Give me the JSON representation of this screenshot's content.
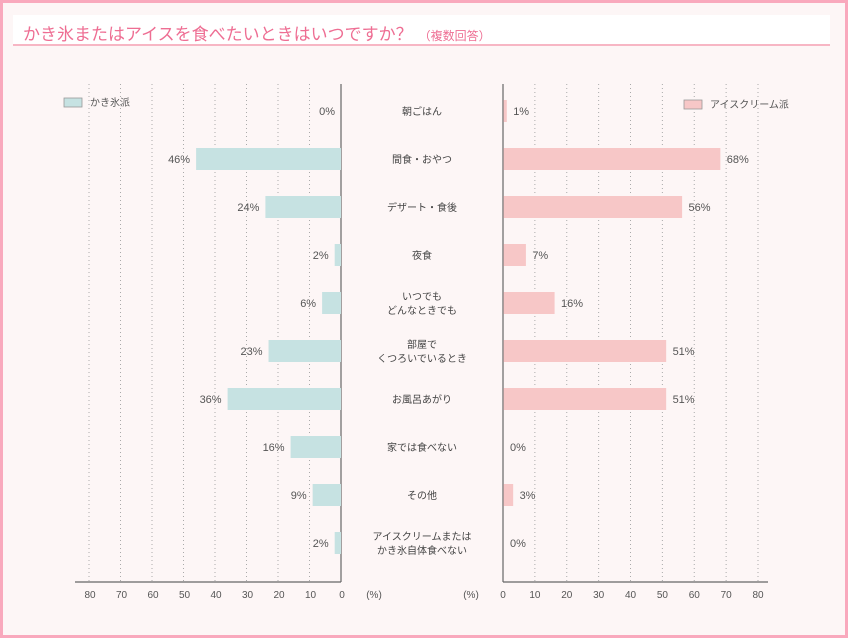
{
  "title": {
    "main": "かき氷またはアイスを食べたいときはいつですか？",
    "sub": "（複数回答）"
  },
  "colors": {
    "kakigori": "#c6e2e2",
    "icecream": "#f7c7c7",
    "title": "#ee6e93",
    "border": "#f9a9bd"
  },
  "chart_data": {
    "type": "bar",
    "orientation": "horizontal-butterfly",
    "title": "かき氷またはアイスを食べたいときはいつですか？（複数回答）",
    "categories": [
      [
        "朝ごはん"
      ],
      [
        "間食・おやつ"
      ],
      [
        "デザート・食後"
      ],
      [
        "夜食"
      ],
      [
        "いつでも",
        "どんなときでも"
      ],
      [
        "部屋で",
        "くつろいでいるとき"
      ],
      [
        "お風呂あがり"
      ],
      [
        "家では食べない"
      ],
      [
        "その他"
      ],
      [
        "アイスクリームまたは",
        "かき氷自体食べない"
      ]
    ],
    "series": [
      {
        "name": "かき氷派",
        "side": "left",
        "values": [
          0,
          46,
          24,
          2,
          6,
          23,
          36,
          16,
          9,
          2
        ],
        "labels": [
          "0%",
          "46%",
          "24%",
          "2%",
          "6%",
          "23%",
          "36%",
          "16%",
          "9%",
          "2%"
        ]
      },
      {
        "name": "アイスクリーム派",
        "side": "right",
        "values": [
          1,
          68,
          56,
          7,
          16,
          51,
          51,
          0,
          3,
          0
        ],
        "labels": [
          "1%",
          "68%",
          "56%",
          "7%",
          "16%",
          "51%",
          "51%",
          "0%",
          "3%",
          "0%"
        ]
      }
    ],
    "xlim": [
      0,
      80
    ],
    "xticks": [
      "0",
      "10",
      "20",
      "30",
      "40",
      "50",
      "60",
      "70",
      "80"
    ],
    "xlabel": "(%)",
    "grid": true,
    "legend": [
      "top-left",
      "top-right"
    ]
  }
}
